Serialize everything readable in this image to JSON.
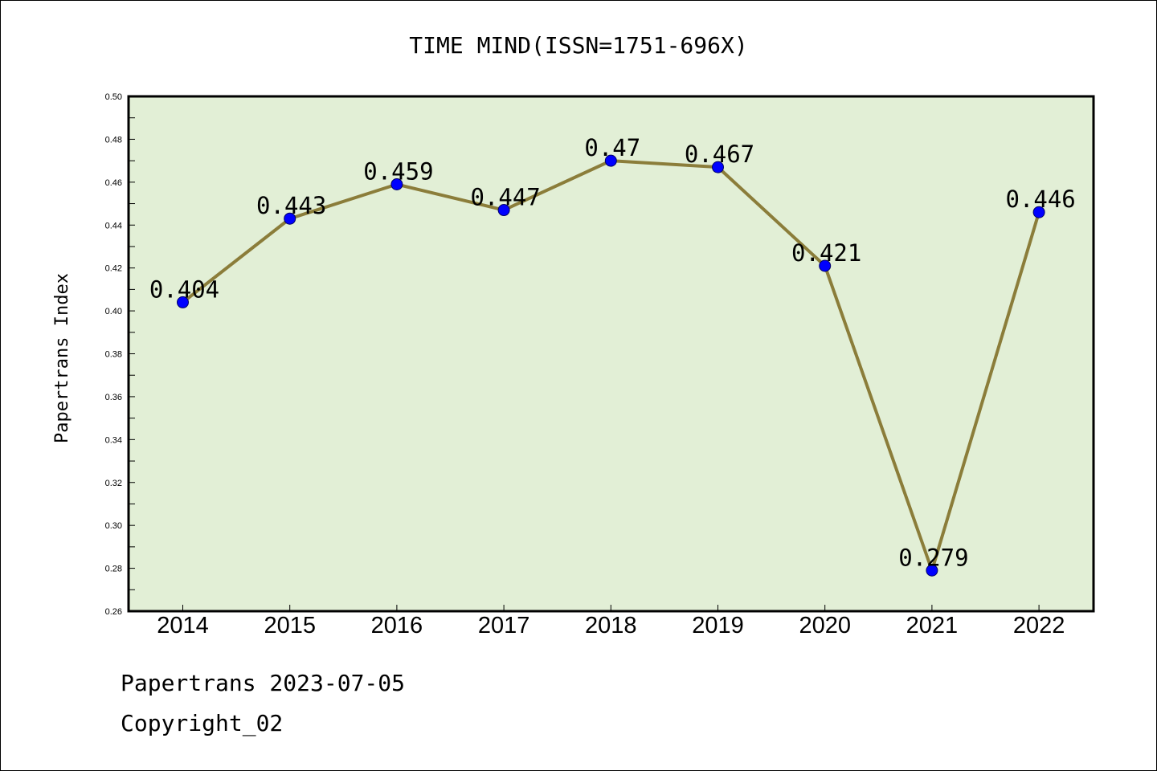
{
  "chart_data": {
    "type": "line",
    "title": "TIME MIND(ISSN=1751-696X)",
    "xlabel": "",
    "ylabel": "Papertrans Index",
    "categories": [
      "2014",
      "2015",
      "2016",
      "2017",
      "2018",
      "2019",
      "2020",
      "2021",
      "2022"
    ],
    "series": [
      {
        "values": [
          0.404,
          0.443,
          0.459,
          0.447,
          0.47,
          0.467,
          0.421,
          0.279,
          0.446
        ],
        "labels": [
          "0.404",
          "0.443",
          "0.459",
          "0.447",
          "0.47",
          "0.467",
          "0.421",
          "0.279",
          "0.446"
        ],
        "line_color": "#8b7d3a",
        "marker_color": "#0000ff"
      }
    ],
    "ylim": [
      0.26,
      0.5
    ],
    "yticks": [
      "0.26",
      "0.28",
      "0.30",
      "0.32",
      "0.34",
      "0.36",
      "0.38",
      "0.40",
      "0.42",
      "0.44",
      "0.46",
      "0.48",
      "0.50"
    ],
    "grid": false,
    "legend": "none",
    "plot_background": "#e2efd6"
  },
  "footer": {
    "line1": "Papertrans 2023-07-05",
    "line2": "Copyright_02"
  }
}
